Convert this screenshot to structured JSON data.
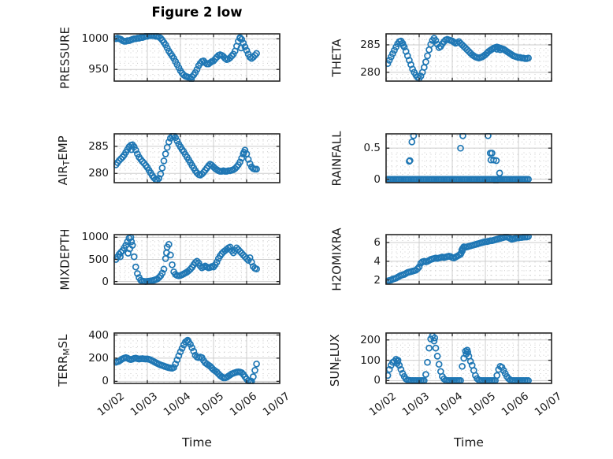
{
  "figure": {
    "title": "Figure 2 low",
    "xlabel": "Time",
    "colors": {
      "marker": "#1f77b4",
      "spine": "#262626",
      "grid_major": "#cdcdcd",
      "grid_minor": "#c9c9c9",
      "text": "#1a1a1a",
      "background": "#ffffff"
    },
    "marker": {
      "shape": "open-circle",
      "radius": 3.5,
      "stroke_width": 1.7
    }
  },
  "x_axis": {
    "xlim": [
      0,
      5
    ],
    "tick_labels": [
      "10/02",
      "10/03",
      "10/04",
      "10/05",
      "10/06",
      "10/07"
    ],
    "minor_divisions_per_day": 6
  },
  "chart_data": [
    {
      "type": "scatter",
      "name": "pressure",
      "grid_pos": [
        0,
        0
      ],
      "ylabel": "PRESSURE",
      "ylabel_parts": [
        {
          "t": "PRESSURE",
          "sub": false
        }
      ],
      "ylim": [
        931,
        1008
      ],
      "yminor_step": 10,
      "yticks": [
        {
          "v": 950,
          "label": "950"
        },
        {
          "v": 1000,
          "label": "1000"
        }
      ],
      "series": {
        "x0": 0.05,
        "dx": 0.05,
        "y": [
          1000,
          1001,
          1000,
          999,
          997,
          996,
          996,
          997,
          997,
          998,
          999,
          1000,
          1000,
          1001,
          1001,
          1002,
          1002,
          1003,
          1004,
          1004,
          1005,
          1005,
          1005,
          1005,
          1004,
          1004,
          1003,
          1001,
          998,
          994,
          990,
          985,
          980,
          976,
          972,
          968,
          963,
          958,
          953,
          948,
          944,
          941,
          939,
          938,
          937,
          936,
          938,
          941,
          945,
          950,
          956,
          960,
          963,
          964,
          961,
          959,
          959,
          961,
          963,
          964,
          967,
          970,
          973,
          974,
          973,
          971,
          968,
          966,
          967,
          969,
          972,
          975,
          980,
          988,
          996,
          1001,
          999,
          993,
          987,
          981,
          975,
          970,
          968,
          970,
          973,
          976
        ]
      },
      "extra_points": [
        [
          3.8,
          1002
        ],
        [
          3.83,
          985
        ],
        [
          2.33,
          934
        ]
      ]
    },
    {
      "type": "scatter",
      "name": "theta",
      "grid_pos": [
        0,
        1
      ],
      "ylabel": "THETA",
      "ylabel_parts": [
        {
          "t": "THETA",
          "sub": false
        }
      ],
      "ylim": [
        278.4,
        287.0
      ],
      "yminor_step": 1,
      "yticks": [
        {
          "v": 280,
          "label": "280"
        },
        {
          "v": 285,
          "label": "285"
        }
      ],
      "series": {
        "x0": 0.05,
        "dx": 0.05,
        "y": [
          281.6,
          282.2,
          282.8,
          283.4,
          284.0,
          284.6,
          285.2,
          285.6,
          285.7,
          285.3,
          284.6,
          283.8,
          283.0,
          282.2,
          281.4,
          280.6,
          280.0,
          279.5,
          279.1,
          278.9,
          279.3,
          280.0,
          280.9,
          281.9,
          283.0,
          284.1,
          285.1,
          285.8,
          286.2,
          285.8,
          285.1,
          284.5,
          284.7,
          285.2,
          285.6,
          285.9,
          286.0,
          285.9,
          285.8,
          285.7,
          285.5,
          285.3,
          285.4,
          285.6,
          285.3,
          285.0,
          284.7,
          284.4,
          284.1,
          283.8,
          283.5,
          283.2,
          283.0,
          282.8,
          282.7,
          282.6,
          282.7,
          282.8,
          283.0,
          283.2,
          283.5,
          283.8,
          284.0,
          284.2,
          284.4,
          284.5,
          284.6,
          284.5,
          284.4,
          284.3,
          284.2,
          284.0,
          283.8,
          283.6,
          283.4,
          283.2,
          283.0,
          282.9,
          282.8,
          282.7,
          282.7,
          282.6,
          282.6,
          282.5,
          282.5,
          282.6
        ]
      },
      "extra_points": [
        [
          0.52,
          284.9
        ],
        [
          3.35,
          284.2
        ],
        [
          3.45,
          284.1
        ]
      ]
    },
    {
      "type": "scatter",
      "name": "air_temp",
      "grid_pos": [
        1,
        0
      ],
      "ylabel": "AIR_TEMP",
      "ylabel_parts": [
        {
          "t": "AIR",
          "sub": false
        },
        {
          "t": "T",
          "sub": true
        },
        {
          "t": "EMP",
          "sub": false
        }
      ],
      "ylim": [
        278.3,
        287.3
      ],
      "yminor_step": 1,
      "yticks": [
        {
          "v": 280,
          "label": "280"
        },
        {
          "v": 285,
          "label": "285"
        }
      ],
      "series": {
        "x0": 0.05,
        "dx": 0.05,
        "y": [
          281.6,
          282.0,
          282.4,
          282.7,
          283.0,
          283.4,
          283.9,
          284.4,
          284.9,
          285.2,
          285.3,
          284.9,
          284.3,
          283.6,
          283.0,
          282.6,
          282.2,
          281.9,
          281.5,
          281.1,
          280.6,
          280.1,
          279.6,
          279.2,
          278.9,
          278.8,
          279.1,
          279.9,
          281.0,
          282.3,
          283.6,
          284.8,
          285.8,
          286.5,
          286.9,
          287.0,
          286.6,
          286.0,
          285.4,
          284.9,
          284.4,
          284.0,
          283.5,
          283.0,
          282.5,
          282.0,
          281.5,
          281.0,
          280.5,
          280.1,
          279.8,
          279.7,
          279.9,
          280.2,
          280.6,
          281.0,
          281.4,
          281.7,
          281.5,
          281.2,
          280.9,
          280.7,
          280.5,
          280.4,
          280.4,
          280.5,
          280.4,
          280.4,
          280.5,
          280.5,
          280.6,
          280.7,
          280.9,
          281.2,
          281.6,
          282.1,
          282.8,
          283.6,
          284.3,
          283.6,
          282.6,
          281.8,
          281.2,
          280.9,
          280.8,
          280.8
        ]
      },
      "extra_points": [
        [
          0.52,
          284.4
        ],
        [
          3.92,
          283.9
        ]
      ]
    },
    {
      "type": "scatter",
      "name": "rainfall",
      "grid_pos": [
        1,
        1
      ],
      "ylabel": "RAINFALL",
      "ylabel_parts": [
        {
          "t": "RAINFALL",
          "sub": false
        }
      ],
      "ylim": [
        -0.055,
        0.73
      ],
      "yminor_step": 0.1,
      "yticks": [
        {
          "v": 0,
          "label": "0"
        },
        {
          "v": 0.5,
          "label": "0.5"
        }
      ],
      "series": {
        "x0": 0.05,
        "dx": 0.05,
        "y": [
          0,
          0,
          0,
          0,
          0,
          0,
          0,
          0,
          0,
          0,
          0,
          0,
          0,
          0,
          0,
          0,
          0,
          0,
          0,
          0,
          0,
          0,
          0,
          0,
          0,
          0,
          0,
          0,
          0,
          0,
          0,
          0,
          0,
          0,
          0,
          0,
          0,
          0,
          0,
          0,
          0,
          0,
          0,
          0,
          0,
          0,
          0,
          0,
          0,
          0,
          0,
          0,
          0,
          0,
          0,
          0,
          0,
          0,
          0,
          0,
          0,
          0,
          0,
          0,
          0,
          0,
          0,
          0,
          0,
          0,
          0,
          0,
          0,
          0,
          0,
          0,
          0,
          0,
          0,
          0,
          0,
          0,
          0,
          0,
          0,
          0
        ]
      },
      "extra_points": [
        [
          0.7,
          0.29
        ],
        [
          0.72,
          0.3
        ],
        [
          0.78,
          0.6
        ],
        [
          0.83,
          0.7
        ],
        [
          2.25,
          0.5
        ],
        [
          2.32,
          0.7
        ],
        [
          3.08,
          0.7
        ],
        [
          3.15,
          0.42
        ],
        [
          3.2,
          0.42
        ],
        [
          3.17,
          0.31
        ],
        [
          3.25,
          0.31
        ],
        [
          3.33,
          0.3
        ],
        [
          3.43,
          0.1
        ],
        [
          3.32,
          -0.03
        ]
      ]
    },
    {
      "type": "scatter",
      "name": "mixdepth",
      "grid_pos": [
        2,
        0
      ],
      "ylabel": "MIXDEPTH",
      "ylabel_parts": [
        {
          "t": "MIXDEPTH",
          "sub": false
        }
      ],
      "ylim": [
        -60,
        1060
      ],
      "yminor_step": 100,
      "yticks": [
        {
          "v": 0,
          "label": "0"
        },
        {
          "v": 500,
          "label": "500"
        },
        {
          "v": 1000,
          "label": "1000"
        }
      ],
      "series": {
        "x0": 0.05,
        "dx": 0.05,
        "y": [
          500,
          560,
          620,
          660,
          700,
          760,
          820,
          900,
          980,
          1000,
          820,
          560,
          330,
          180,
          90,
          30,
          10,
          5,
          0,
          5,
          10,
          15,
          20,
          30,
          45,
          60,
          90,
          130,
          190,
          280,
          520,
          780,
          840,
          600,
          380,
          220,
          160,
          140,
          130,
          140,
          155,
          175,
          195,
          215,
          245,
          280,
          320,
          380,
          430,
          460,
          420,
          350,
          310,
          330,
          350,
          330,
          310,
          320,
          340,
          330,
          380,
          440,
          520,
          580,
          630,
          670,
          700,
          730,
          760,
          780,
          700,
          650,
          700,
          760,
          720,
          680,
          640,
          600,
          560,
          520,
          480,
          540,
          440,
          340,
          300,
          285
        ]
      },
      "extra_points": [
        [
          0.18,
          560
        ],
        [
          0.42,
          640
        ],
        [
          0.47,
          740
        ],
        [
          0.52,
          900
        ],
        [
          1.58,
          650
        ]
      ]
    },
    {
      "type": "scatter",
      "name": "h2omixra",
      "grid_pos": [
        2,
        1
      ],
      "ylabel": "H2OMIXRA",
      "ylabel_parts": [
        {
          "t": "H2OMIXRA",
          "sub": false
        }
      ],
      "ylim": [
        1.55,
        6.85
      ],
      "yminor_step": 0.5,
      "yticks": [
        {
          "v": 2,
          "label": "2"
        },
        {
          "v": 4,
          "label": "4"
        },
        {
          "v": 6,
          "label": "6"
        }
      ],
      "series": {
        "x0": 0.05,
        "dx": 0.05,
        "y": [
          1.9,
          1.95,
          2.0,
          2.1,
          2.15,
          2.2,
          2.3,
          2.4,
          2.5,
          2.55,
          2.6,
          2.7,
          2.8,
          2.85,
          2.9,
          2.95,
          3.0,
          3.05,
          3.2,
          3.4,
          3.8,
          3.95,
          4.0,
          3.95,
          4.0,
          4.1,
          4.2,
          4.25,
          4.3,
          4.35,
          4.3,
          4.35,
          4.4,
          4.45,
          4.4,
          4.45,
          4.5,
          4.55,
          4.5,
          4.4,
          4.35,
          4.45,
          4.55,
          4.65,
          4.75,
          5.1,
          5.55,
          5.5,
          5.55,
          5.6,
          5.65,
          5.7,
          5.75,
          5.8,
          5.85,
          5.9,
          5.95,
          6.0,
          6.05,
          6.1,
          6.1,
          6.15,
          6.2,
          6.2,
          6.25,
          6.3,
          6.35,
          6.4,
          6.45,
          6.5,
          6.55,
          6.6,
          6.6,
          6.55,
          6.45,
          6.35,
          6.4,
          6.45,
          6.5,
          6.5,
          6.55,
          6.55,
          6.6,
          6.6,
          6.6,
          6.65
        ]
      },
      "extra_points": [
        [
          2.27,
          4.9
        ],
        [
          2.29,
          5.2
        ],
        [
          2.31,
          5.35
        ]
      ]
    },
    {
      "type": "scatter",
      "name": "terr_msl",
      "grid_pos": [
        3,
        0
      ],
      "ylabel": "TERR_MSL",
      "ylabel_parts": [
        {
          "t": "TERR",
          "sub": false
        },
        {
          "t": "M",
          "sub": true
        },
        {
          "t": "SL",
          "sub": false
        }
      ],
      "ylim": [
        -18,
        417
      ],
      "yminor_step": 50,
      "yticks": [
        {
          "v": 0,
          "label": "0"
        },
        {
          "v": 200,
          "label": "200"
        },
        {
          "v": 400,
          "label": "400"
        }
      ],
      "series": {
        "x0": 0.05,
        "dx": 0.05,
        "y": [
          165,
          170,
          175,
          185,
          195,
          200,
          205,
          200,
          192,
          188,
          192,
          198,
          200,
          196,
          193,
          195,
          196,
          194,
          193,
          194,
          190,
          185,
          178,
          170,
          162,
          155,
          148,
          142,
          137,
          132,
          127,
          122,
          118,
          115,
          113,
          120,
          150,
          185,
          220,
          255,
          285,
          315,
          340,
          350,
          340,
          320,
          290,
          260,
          225,
          210,
          205,
          210,
          205,
          180,
          160,
          150,
          140,
          130,
          115,
          100,
          90,
          80,
          65,
          50,
          40,
          30,
          30,
          35,
          45,
          55,
          65,
          70,
          75,
          80,
          82,
          80,
          75,
          60,
          40,
          20,
          5,
          -5,
          0,
          40,
          95,
          150
        ]
      },
      "extra_points": [
        [
          2.22,
          355
        ],
        [
          4.13,
          -8
        ]
      ]
    },
    {
      "type": "scatter",
      "name": "sun_flux",
      "grid_pos": [
        3,
        1
      ],
      "ylabel": "SUN_FLUX",
      "ylabel_parts": [
        {
          "t": "SUN",
          "sub": false
        },
        {
          "t": "F",
          "sub": true
        },
        {
          "t": "LUX",
          "sub": false
        }
      ],
      "ylim": [
        -14,
        234
      ],
      "yminor_step": 25,
      "yticks": [
        {
          "v": 0,
          "label": "0"
        },
        {
          "v": 100,
          "label": "100"
        },
        {
          "v": 200,
          "label": "200"
        }
      ],
      "series": {
        "x0": 0.05,
        "dx": 0.05,
        "y": [
          25,
          55,
          75,
          90,
          95,
          105,
          95,
          75,
          55,
          35,
          20,
          8,
          3,
          1,
          0,
          0,
          0,
          0,
          0,
          0,
          0,
          0,
          0,
          30,
          90,
          160,
          205,
          220,
          195,
          160,
          120,
          80,
          45,
          20,
          8,
          2,
          0,
          0,
          0,
          0,
          0,
          0,
          0,
          0,
          0,
          70,
          110,
          145,
          150,
          120,
          95,
          75,
          50,
          25,
          10,
          3,
          0,
          0,
          0,
          0,
          0,
          0,
          0,
          0,
          0,
          0,
          25,
          55,
          70,
          65,
          50,
          35,
          20,
          10,
          4,
          0,
          0,
          0,
          0,
          0,
          0,
          0,
          0,
          0,
          0,
          0
        ]
      },
      "extra_points": [
        [
          0.33,
          85
        ],
        [
          0.36,
          100
        ],
        [
          1.47,
          210
        ],
        [
          2.42,
          130
        ],
        [
          2.47,
          140
        ]
      ]
    }
  ]
}
